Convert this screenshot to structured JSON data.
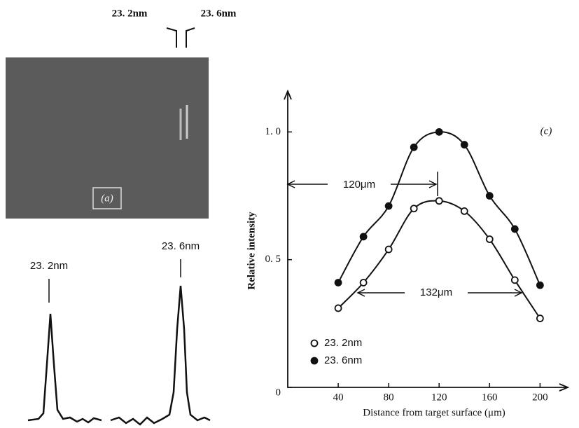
{
  "photo": {
    "labels": [
      "23. 2nm",
      "23. 6nm"
    ],
    "tag": "(a)"
  },
  "trace": {
    "labels": [
      "23. 2nm",
      "23. 6nm"
    ]
  },
  "chart_data": {
    "type": "scatter",
    "tag": "(c)",
    "xlabel": "Distance from target surface (μm)",
    "ylabel": "Relative intensity",
    "x": [
      40,
      60,
      80,
      100,
      120,
      140,
      160,
      180,
      200
    ],
    "series": [
      {
        "name": "23. 2nm",
        "color": "#111111",
        "marker": "open",
        "values": [
          0.31,
          0.41,
          0.54,
          0.7,
          0.73,
          0.69,
          0.58,
          0.42,
          0.27
        ]
      },
      {
        "name": "23. 6nm",
        "color": "#111111",
        "marker": "filled",
        "values": [
          0.41,
          0.59,
          0.71,
          0.94,
          1.0,
          0.95,
          0.75,
          0.62,
          0.4
        ]
      }
    ],
    "xlim": [
      0,
      222
    ],
    "ylim": [
      0,
      1.16
    ],
    "xticks": [
      40,
      80,
      120,
      160,
      200
    ],
    "yticks": [
      0,
      {
        "value": 0.5,
        "label": "0. 5"
      },
      {
        "value": 1,
        "label": "1. 0"
      }
    ],
    "annotations": [
      "120μm",
      "132μm"
    ],
    "legend": "lower left",
    "grid": false
  }
}
